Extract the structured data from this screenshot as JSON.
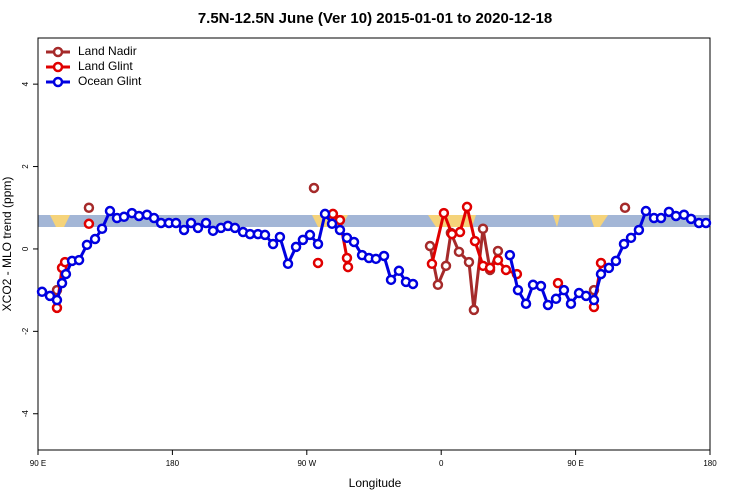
{
  "chart_data": {
    "type": "line",
    "title": "7.5N-12.5N June (Ver 10)   2015-01-01 to 2020-12-18",
    "xlabel": "Longitude",
    "ylabel": "XCO2 - MLO trend (ppm)",
    "xlim": [
      90,
      540
    ],
    "ylim": [
      -4.88,
      5.12
    ],
    "xticks": [
      {
        "value": 90,
        "label": "90 E"
      },
      {
        "value": 180,
        "label": "180"
      },
      {
        "value": 270,
        "label": "90 W"
      },
      {
        "value": 360,
        "label": "0"
      },
      {
        "value": 450,
        "label": "90 E"
      },
      {
        "value": 540,
        "label": "180"
      }
    ],
    "yticks": [
      -4,
      -2,
      0,
      2,
      4
    ],
    "legend": "top-left",
    "series": [
      {
        "name": "Land Nadir",
        "color": "#a52a2a",
        "x": [
          102.7,
          115,
          124.1,
          200,
          274.8,
          320,
          352.5,
          357.8,
          363.2,
          366.5,
          371.9,
          378.6,
          381.9,
          388.0,
          392.7,
          398.0,
          430,
          462.3,
          470,
          483.1
        ],
        "values": [
          -1.0,
          null,
          1.0,
          null,
          1.48,
          null,
          0.07,
          -0.87,
          -0.41,
          0.39,
          -0.07,
          -0.32,
          -1.48,
          0.49,
          -0.51,
          -0.05,
          null,
          -1.0,
          null,
          1.0
        ]
      },
      {
        "name": "Land Glint",
        "color": "#e00000",
        "x": [
          102.7,
          106.1,
          108.1,
          115,
          124.1,
          200,
          277.5,
          282,
          287.5,
          292.2,
          296.9,
          297.6,
          320,
          353.8,
          361.8,
          367.2,
          372.6,
          377.3,
          382.6,
          388.0,
          392.7,
          398.0,
          403.4,
          410.7,
          425,
          438.2,
          450,
          462.3,
          467.0
        ],
        "values": [
          -1.43,
          -0.46,
          -0.32,
          null,
          0.61,
          null,
          -0.34,
          null,
          0.85,
          0.7,
          -0.22,
          -0.44,
          null,
          -0.36,
          0.87,
          0.36,
          0.41,
          1.02,
          0.19,
          -0.41,
          -0.46,
          -0.27,
          -0.51,
          -0.61,
          null,
          -0.83,
          null,
          -1.41,
          -0.34
        ]
      },
      {
        "name": "Ocean Glint",
        "color": "#0000e0",
        "x": [
          92.7,
          98.0,
          102.7,
          106.1,
          108.7,
          112.8,
          117.5,
          122.8,
          128.2,
          132.9,
          138.2,
          142.9,
          147.6,
          152.9,
          157.6,
          163.0,
          167.7,
          172.4,
          177.7,
          182.4,
          187.8,
          192.5,
          197.1,
          202.5,
          207.2,
          212.5,
          217.2,
          221.9,
          227.3,
          232.0,
          237.3,
          242.0,
          247.4,
          252.0,
          257.4,
          262.8,
          267.4,
          272.1,
          277.5,
          282.2,
          286.9,
          292.2,
          296.9,
          301.6,
          307.0,
          311.6,
          316.3,
          321.7,
          326.4,
          331.7,
          336.4,
          341.1,
          370,
          406.0,
          411.4,
          416.8,
          421.5,
          426.8,
          431.5,
          436.9,
          442.2,
          446.9,
          452.3,
          457.0,
          462.3,
          467.0,
          472.3,
          477.0,
          482.4,
          487.1,
          492.4,
          497.1,
          502.5,
          507.2,
          512.5,
          517.2,
          522.6,
          527.3,
          532.6,
          537.3
        ],
        "values": [
          -1.04,
          -1.14,
          -1.24,
          -0.83,
          -0.61,
          -0.29,
          -0.27,
          0.1,
          0.24,
          0.49,
          0.92,
          0.75,
          0.78,
          0.87,
          0.8,
          0.83,
          0.75,
          0.63,
          0.63,
          0.63,
          0.46,
          0.63,
          0.51,
          0.63,
          0.44,
          0.51,
          0.56,
          0.51,
          0.41,
          0.36,
          0.36,
          0.34,
          0.12,
          0.29,
          -0.36,
          0.05,
          0.22,
          0.34,
          0.12,
          0.85,
          0.61,
          0.46,
          0.27,
          0.17,
          -0.15,
          -0.22,
          -0.24,
          -0.17,
          -0.75,
          -0.53,
          -0.8,
          -0.85,
          null,
          -0.15,
          -1.0,
          -1.33,
          -0.87,
          -0.9,
          -1.36,
          -1.21,
          -1.0,
          -1.33,
          -1.07,
          -1.14,
          -1.24,
          -0.61,
          -0.46,
          -0.29,
          0.12,
          0.27,
          0.46,
          0.92,
          0.75,
          0.75,
          0.9,
          0.8,
          0.83,
          0.73,
          0.63,
          0.63
        ]
      }
    ]
  }
}
